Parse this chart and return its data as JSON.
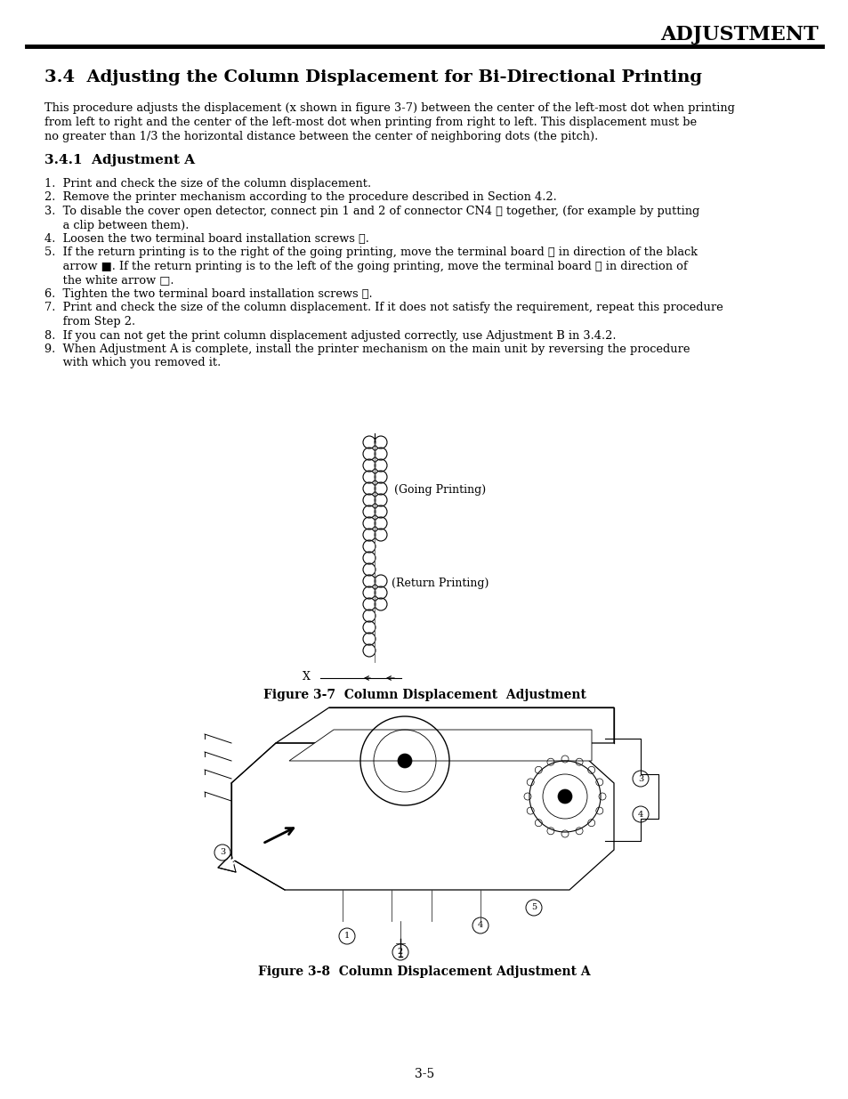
{
  "bg_color": "#ffffff",
  "header_title": "ADJUSTMENT",
  "section_title": "3.4  Adjusting the Column Displacement for Bi-Directional Printing",
  "intro_line1": "This procedure adjusts the displacement (x shown in figure 3-7) between the center of the left-most dot when printing",
  "intro_line2": "from left to right and the center of the left-most dot when printing from right to left. This displacement must be",
  "intro_line3": "no greater than 1/3 the horizontal distance between the center of neighboring dots (the pitch).",
  "subsection_title": "3.4.1  Adjustment A",
  "step1": "1.  Print and check the size of the column displacement.",
  "step2": "2.  Remove the printer mechanism according to the procedure described in Section 4.2.",
  "step3a": "3.  To disable the cover open detector, connect pin 1 and 2 of connector CN4 ① together, (for example by putting",
  "step3b": "     a clip between them).",
  "step4": "4.  Loosen the two terminal board installation screws ②.",
  "step5a": "5.  If the return printing is to the right of the going printing, move the terminal board ③ in direction of the black",
  "step5b": "     arrow ■. If the return printing is to the left of the going printing, move the terminal board ③ in direction of",
  "step5c": "     the white arrow □.",
  "step6": "6.  Tighten the two terminal board installation screws ②.",
  "step7a": "7.  Print and check the size of the column displacement. If it does not satisfy the requirement, repeat this procedure",
  "step7b": "     from Step 2.",
  "step8": "8.  If you can not get the print column displacement adjusted correctly, use Adjustment B in 3.4.2.",
  "step9a": "9.  When Adjustment A is complete, install the printer mechanism on the main unit by reversing the procedure",
  "step9b": "     with which you removed it.",
  "fig37_caption": "Figure 3-7  Column Displacement  Adjustment",
  "fig38_caption": "Figure 3-8  Column Displacement Adjustment A",
  "page_number": "3-5",
  "going_label": "(Going Printing)",
  "return_label": "(Return Printing)",
  "x_label": "X"
}
